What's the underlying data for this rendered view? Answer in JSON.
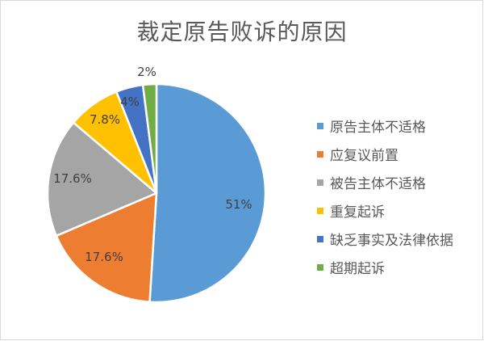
{
  "chart_data": {
    "type": "pie",
    "title": "裁定原告败诉的原因",
    "categories": [
      "原告主体不适格",
      "应复议前置",
      "被告主体不适格",
      "重复起诉",
      "缺乏事实及法律依据",
      "超期起诉"
    ],
    "values": [
      51,
      17.6,
      17.6,
      7.8,
      4,
      2
    ],
    "data_labels": [
      "51%",
      "17.6%",
      "17.6%",
      "7.8%",
      "4%",
      "2%"
    ],
    "colors": [
      "#5B9BD5",
      "#ED7D31",
      "#A5A5A5",
      "#FFC000",
      "#4472C4",
      "#70AD47"
    ],
    "legend_position": "right",
    "start_angle": "12 o'clock, clockwise"
  },
  "title": "裁定原告败诉的原因",
  "legend": {
    "items": [
      {
        "label": "原告主体不适格",
        "color": "#5B9BD5"
      },
      {
        "label": "应复议前置",
        "color": "#ED7D31"
      },
      {
        "label": "被告主体不适格",
        "color": "#A5A5A5"
      },
      {
        "label": "重复起诉",
        "color": "#FFC000"
      },
      {
        "label": "缺乏事实及法律依据",
        "color": "#4472C4"
      },
      {
        "label": "超期起诉",
        "color": "#70AD47"
      }
    ]
  },
  "labels": [
    "51%",
    "17.6%",
    "17.6%",
    "7.8%",
    "4%",
    "2%"
  ]
}
